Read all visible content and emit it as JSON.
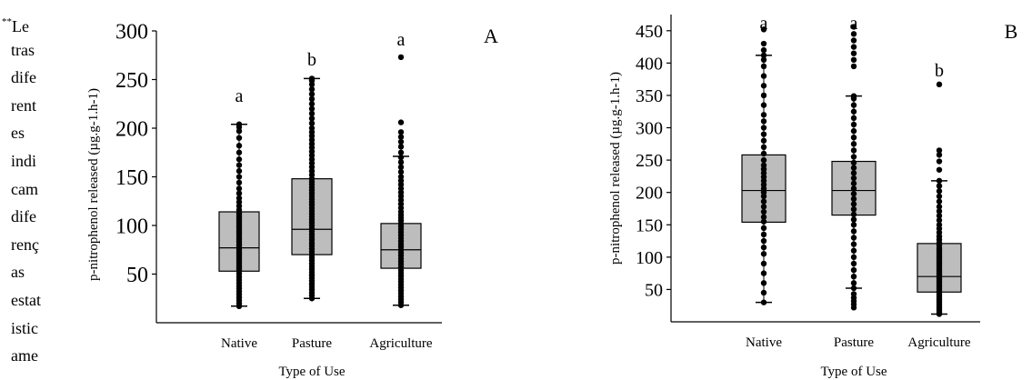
{
  "side_note": {
    "superscript": "**",
    "lines": [
      "Le",
      "tras",
      "dife",
      "rent",
      "es",
      "indi",
      "cam",
      "dife",
      "renç",
      "as",
      "estat",
      "istic",
      "ame"
    ]
  },
  "chart_data": [
    {
      "type": "box",
      "panel_label": "A",
      "ylabel": "p-nitrophenol released (µg.g-1.h-1)",
      "xlabel": "Type of Use",
      "ylim": [
        0,
        300
      ],
      "yticks": [
        50,
        100,
        150,
        200,
        250,
        300
      ],
      "categories": [
        "Native",
        "Pasture",
        "Agriculture"
      ],
      "boxes": [
        {
          "category": "Native",
          "q1": 53,
          "median": 77,
          "q3": 114,
          "whisker_low": 17,
          "whisker_high": 204,
          "letter": "a",
          "points": [
            17,
            20,
            23,
            26,
            29,
            32,
            35,
            38,
            41,
            44,
            47,
            50,
            53,
            55,
            57,
            59,
            61,
            63,
            65,
            67,
            69,
            71,
            73,
            75,
            77,
            79,
            81,
            83,
            85,
            87,
            89,
            91,
            93,
            95,
            97,
            99,
            101,
            103,
            105,
            107,
            109,
            111,
            113,
            116,
            120,
            124,
            128,
            133,
            138,
            144,
            150,
            156,
            162,
            168,
            175,
            182,
            190,
            197,
            201,
            204
          ]
        },
        {
          "category": "Pasture",
          "q1": 70,
          "median": 96,
          "q3": 148,
          "whisker_low": 25,
          "whisker_high": 251,
          "letter": "b",
          "points": [
            25,
            28,
            31,
            34,
            37,
            40,
            43,
            46,
            49,
            52,
            55,
            58,
            61,
            64,
            67,
            70,
            73,
            76,
            79,
            82,
            85,
            88,
            91,
            94,
            97,
            100,
            103,
            106,
            109,
            112,
            115,
            118,
            121,
            124,
            127,
            130,
            133,
            136,
            139,
            142,
            145,
            148,
            152,
            156,
            160,
            164,
            168,
            172,
            176,
            180,
            184,
            188,
            192,
            196,
            200,
            205,
            210,
            215,
            220,
            225,
            230,
            235,
            240,
            245,
            249,
            251
          ]
        },
        {
          "category": "Agriculture",
          "q1": 56,
          "median": 75,
          "q3": 102,
          "whisker_low": 18,
          "whisker_high": 171,
          "letter": "a",
          "points": [
            18,
            21,
            24,
            27,
            30,
            33,
            36,
            39,
            42,
            45,
            48,
            51,
            54,
            57,
            60,
            63,
            66,
            69,
            72,
            75,
            78,
            81,
            84,
            87,
            90,
            93,
            96,
            99,
            102,
            105,
            108,
            111,
            114,
            118,
            122,
            126,
            130,
            134,
            138,
            142,
            146,
            150,
            155,
            160,
            165,
            170,
            175,
            181,
            186,
            191,
            196,
            206,
            273
          ]
        }
      ]
    },
    {
      "type": "box",
      "panel_label": "B",
      "ylabel": "p-nitrophenol released (µg.g-1.h-1)",
      "xlabel": "Type of Use",
      "ylim": [
        0,
        475
      ],
      "yticks": [
        50,
        100,
        150,
        200,
        250,
        300,
        350,
        400,
        450
      ],
      "categories": [
        "Native",
        "Pasture",
        "Agriculture"
      ],
      "boxes": [
        {
          "category": "Native",
          "q1": 154,
          "median": 203,
          "q3": 258,
          "whisker_low": 30,
          "whisker_high": 412,
          "letter": "a",
          "points": [
            30,
            45,
            60,
            75,
            90,
            105,
            115,
            125,
            135,
            145,
            155,
            162,
            170,
            178,
            186,
            194,
            200,
            206,
            212,
            218,
            224,
            230,
            236,
            242,
            250,
            260,
            270,
            280,
            290,
            300,
            310,
            320,
            335,
            350,
            365,
            380,
            395,
            405,
            412,
            420,
            430,
            452
          ]
        },
        {
          "category": "Pasture",
          "q1": 165,
          "median": 203,
          "q3": 248,
          "whisker_low": 52,
          "whisker_high": 349,
          "letter": "a",
          "points": [
            22,
            27,
            32,
            37,
            43,
            52,
            60,
            70,
            80,
            90,
            100,
            110,
            120,
            130,
            140,
            150,
            158,
            166,
            174,
            182,
            190,
            198,
            206,
            214,
            222,
            230,
            238,
            246,
            255,
            265,
            275,
            285,
            295,
            305,
            315,
            325,
            335,
            345,
            349,
            395,
            405,
            415,
            425,
            435,
            445,
            456
          ]
        },
        {
          "category": "Agriculture",
          "q1": 46,
          "median": 70,
          "q3": 121,
          "whisker_low": 12,
          "whisker_high": 218,
          "letter": "b",
          "points": [
            12,
            15,
            18,
            21,
            24,
            27,
            30,
            33,
            36,
            39,
            42,
            45,
            48,
            51,
            54,
            57,
            60,
            63,
            66,
            69,
            72,
            75,
            78,
            81,
            84,
            87,
            90,
            93,
            96,
            99,
            102,
            105,
            108,
            111,
            114,
            118,
            122,
            127,
            132,
            138,
            144,
            150,
            157,
            164,
            171,
            178,
            186,
            194,
            202,
            210,
            218,
            235,
            248,
            258,
            265,
            367
          ]
        }
      ]
    }
  ]
}
